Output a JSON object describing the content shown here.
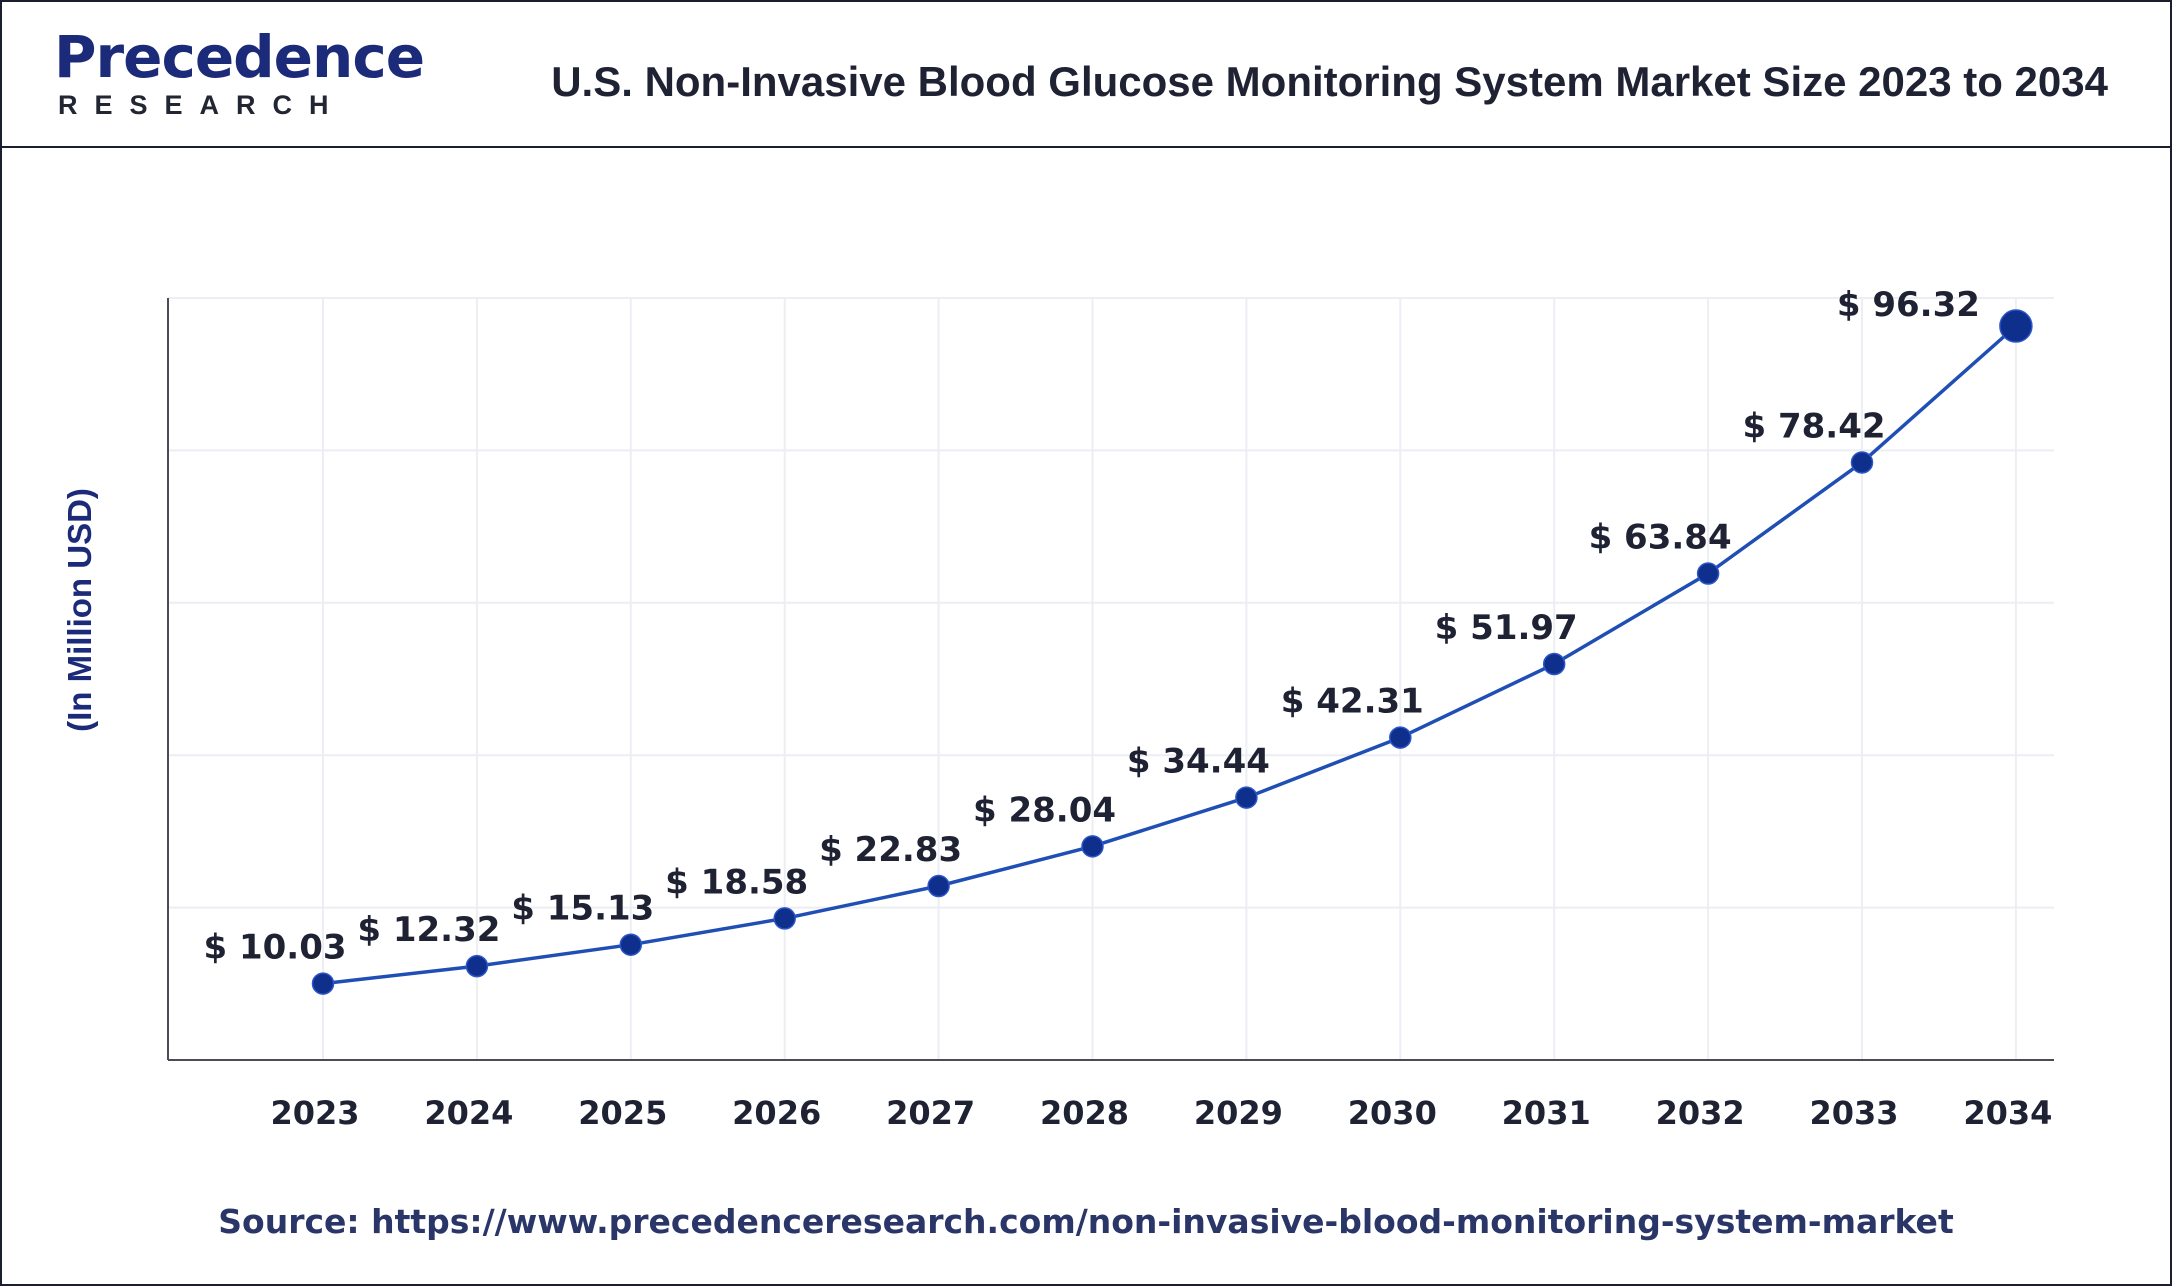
{
  "header": {
    "logo_word": "Precedence",
    "logo_sub": "RESEARCH",
    "title": "U.S. Non-Invasive Blood Glucose Monitoring System Market Size 2023 to 2034"
  },
  "source": "Source: https://www.precedenceresearch.com/non-invasive-blood-monitoring-system-market",
  "colors": {
    "line": "#1f4fb4",
    "marker": "#0f2f8c",
    "grid": "#eceef3",
    "axis": "#4a4d57",
    "text": "#1e2233",
    "brand": "#1c2a7a"
  },
  "chart_data": {
    "type": "line",
    "title": "U.S. Non-Invasive Blood Glucose Monitoring System Market Size 2023 to 2034",
    "xlabel": "",
    "ylabel": "(In Million USD)",
    "x": [
      "2023",
      "2024",
      "2025",
      "2026",
      "2027",
      "2028",
      "2029",
      "2030",
      "2031",
      "2032",
      "2033",
      "2034"
    ],
    "series": [
      {
        "values": [
          10.03,
          12.32,
          15.13,
          18.58,
          22.83,
          28.04,
          34.44,
          42.31,
          51.97,
          63.84,
          78.42,
          96.32
        ],
        "labels": [
          "$ 10.03",
          "$ 12.32",
          "$ 15.13",
          "$ 18.58",
          "$ 22.83",
          "$ 28.04",
          "$ 34.44",
          "$ 42.31",
          "$ 51.97",
          "$ 63.84",
          "$ 78.42",
          "$ 96.32"
        ]
      }
    ],
    "ylim": [
      0,
      100
    ],
    "grid": true,
    "legend": "none"
  }
}
